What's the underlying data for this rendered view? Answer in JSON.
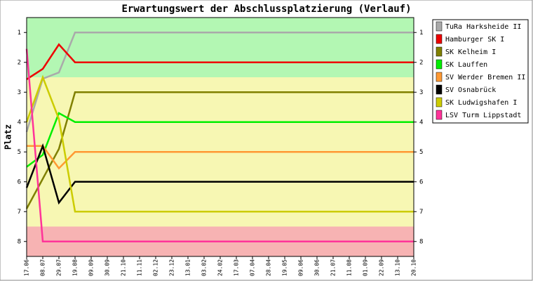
{
  "chart_data": {
    "type": "line",
    "title": "Erwartungswert der Abschlussplatzierung (Verlauf)",
    "y_label": "Platz",
    "categories": [
      "17.06",
      "08.07",
      "29.07",
      "19.08",
      "09.09",
      "30.09",
      "21.10",
      "11.11",
      "02.12",
      "23.12",
      "13.01",
      "03.02",
      "24.02",
      "17.03",
      "07.04",
      "28.04",
      "19.05",
      "09.06",
      "30.06",
      "21.07",
      "11.08",
      "01.09",
      "22.09",
      "13.10",
      "20.10"
    ],
    "ylim": [
      0.5,
      8.5
    ],
    "invert_y": true,
    "yticks": [
      1,
      2,
      3,
      4,
      5,
      6,
      7,
      8
    ],
    "bands": [
      {
        "from": 0.5,
        "to": 2.5,
        "color": "#b3f7b3"
      },
      {
        "from": 2.5,
        "to": 7.5,
        "color": "#f7f7b3"
      },
      {
        "from": 7.5,
        "to": 8.5,
        "color": "#f7b3b3"
      }
    ],
    "legend": "right",
    "series": [
      {
        "name": "TuRa Harksheide II",
        "color": "#aaaaaa",
        "values": [
          4.33,
          2.55,
          2.34,
          1,
          1,
          1,
          1,
          1,
          1,
          1,
          1,
          1,
          1,
          1,
          1,
          1,
          1,
          1,
          1,
          1,
          1,
          1,
          1,
          1,
          1
        ]
      },
      {
        "name": "Hamburger SK I",
        "color": "#ee0000",
        "values": [
          2.57,
          2.22,
          1.4,
          2,
          2,
          2,
          2,
          2,
          2,
          2,
          2,
          2,
          2,
          2,
          2,
          2,
          2,
          2,
          2,
          2,
          2,
          2,
          2,
          2,
          2
        ]
      },
      {
        "name": "SK Kelheim I",
        "color": "#808000",
        "values": [
          6.9,
          5.9,
          4.9,
          3,
          3,
          3,
          3,
          3,
          3,
          3,
          3,
          3,
          3,
          3,
          3,
          3,
          3,
          3,
          3,
          3,
          3,
          3,
          3,
          3,
          3
        ]
      },
      {
        "name": "SK Lauffen",
        "color": "#00ee00",
        "values": [
          5.5,
          5.1,
          3.7,
          4,
          4,
          4,
          4,
          4,
          4,
          4,
          4,
          4,
          4,
          4,
          4,
          4,
          4,
          4,
          4,
          4,
          4,
          4,
          4,
          4,
          4
        ]
      },
      {
        "name": "SV Werder Bremen II",
        "color": "#ff9933",
        "values": [
          4.8,
          4.8,
          5.55,
          5,
          5,
          5,
          5,
          5,
          5,
          5,
          5,
          5,
          5,
          5,
          5,
          5,
          5,
          5,
          5,
          5,
          5,
          5,
          5,
          5,
          5
        ]
      },
      {
        "name": "SV Osnabrück",
        "color": "#000000",
        "values": [
          6.2,
          4.8,
          6.7,
          6,
          6,
          6,
          6,
          6,
          6,
          6,
          6,
          6,
          6,
          6,
          6,
          6,
          6,
          6,
          6,
          6,
          6,
          6,
          6,
          6,
          6
        ]
      },
      {
        "name": "SK Ludwigshafen I",
        "color": "#cccc00",
        "values": [
          4.0,
          2.5,
          3.9,
          7,
          7,
          7,
          7,
          7,
          7,
          7,
          7,
          7,
          7,
          7,
          7,
          7,
          7,
          7,
          7,
          7,
          7,
          7,
          7,
          7,
          7
        ]
      },
      {
        "name": "LSV Turm Lippstadt",
        "color": "#ff3399",
        "values": [
          1.55,
          8,
          8,
          8,
          8,
          8,
          8,
          8,
          8,
          8,
          8,
          8,
          8,
          8,
          8,
          8,
          8,
          8,
          8,
          8,
          8,
          8,
          8,
          8,
          8
        ]
      }
    ]
  }
}
